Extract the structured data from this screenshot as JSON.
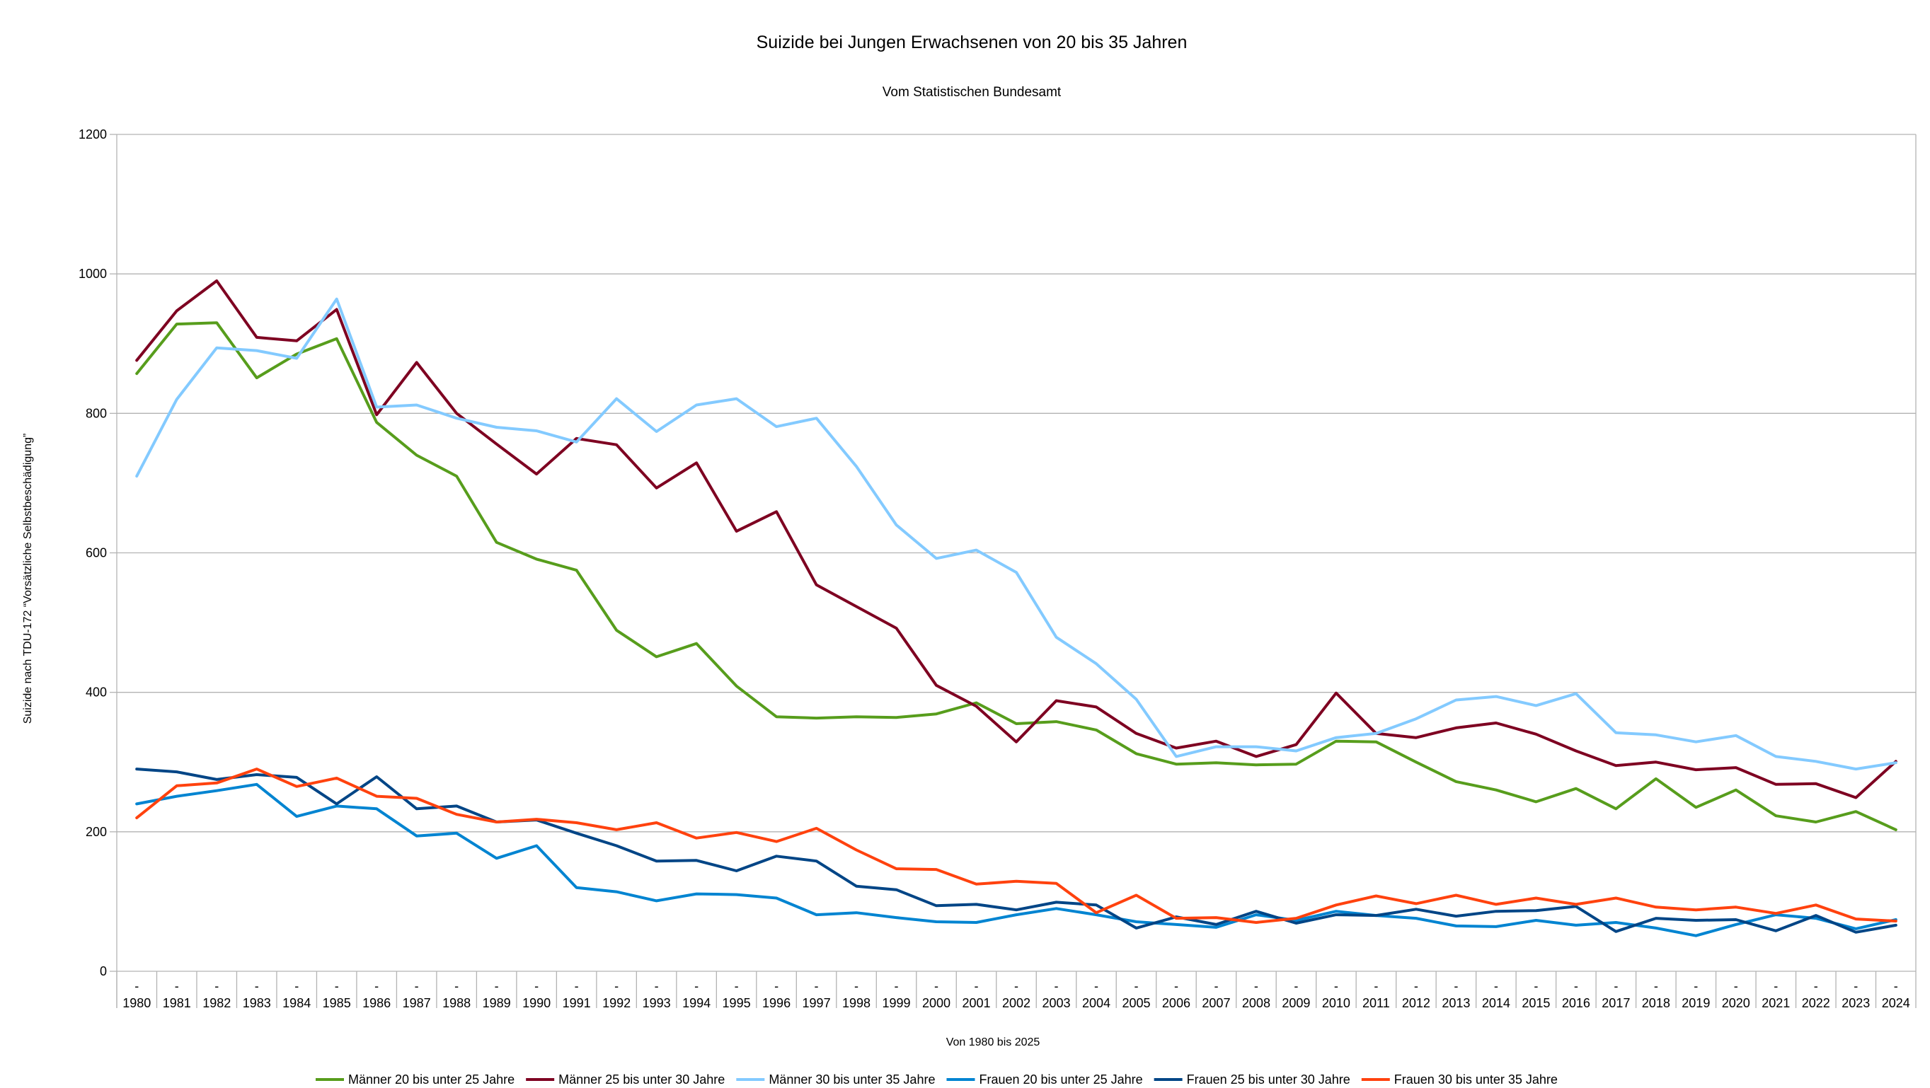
{
  "chart_data": {
    "type": "line",
    "title": "Suizide bei Jungen Erwachsenen von 20 bis 35 Jahren",
    "subtitle": "Vom Statistischen Bundesamt",
    "xlabel": "Von 1980 bis 2025",
    "ylabel": "Suizide nach TDU-172 “Vorsätzliche Selbstbeschädigung”",
    "ylim": [
      0,
      1200
    ],
    "yticks": [
      0,
      200,
      400,
      600,
      800,
      1000,
      1200
    ],
    "ytick_labels": [
      "0",
      "200",
      "400",
      "600",
      "800",
      "1000",
      "1200"
    ],
    "grid": true,
    "legend": "bottom",
    "category_prefix": "-",
    "categories": [
      "1980",
      "1981",
      "1982",
      "1983",
      "1984",
      "1985",
      "1986",
      "1987",
      "1988",
      "1989",
      "1990",
      "1991",
      "1992",
      "1993",
      "1994",
      "1995",
      "1996",
      "1997",
      "1998",
      "1999",
      "2000",
      "2001",
      "2002",
      "2003",
      "2004",
      "2005",
      "2006",
      "2007",
      "2008",
      "2009",
      "2010",
      "2011",
      "2012",
      "2013",
      "2014",
      "2015",
      "2016",
      "2017",
      "2018",
      "2019",
      "2020",
      "2021",
      "2022",
      "2023",
      "2024"
    ],
    "series": [
      {
        "name": "Männer 20 bis unter 25 Jahre",
        "color": "#579d1c",
        "values": [
          857,
          928,
          930,
          851,
          885,
          907,
          787,
          740,
          710,
          615,
          591,
          575,
          489,
          451,
          470,
          409,
          365,
          363,
          365,
          364,
          369,
          385,
          355,
          358,
          346,
          312,
          297,
          299,
          296,
          297,
          330,
          329,
          300,
          272,
          260,
          243,
          262,
          233,
          276,
          235,
          260,
          223,
          214,
          229,
          203
        ]
      },
      {
        "name": "Männer 25 bis unter 30 Jahre",
        "color": "#7e0021",
        "values": [
          876,
          947,
          990,
          909,
          904,
          949,
          798,
          873,
          800,
          756,
          713,
          764,
          755,
          693,
          729,
          631,
          659,
          554,
          523,
          492,
          410,
          380,
          329,
          388,
          379,
          341,
          320,
          330,
          308,
          325,
          399,
          341,
          335,
          349,
          356,
          340,
          316,
          295,
          300,
          289,
          292,
          268,
          269,
          249,
          301
        ]
      },
      {
        "name": "Männer 30 bis unter 35 Jahre",
        "color": "#83caff",
        "values": [
          710,
          820,
          894,
          890,
          879,
          964,
          809,
          812,
          793,
          780,
          775,
          759,
          821,
          774,
          812,
          821,
          781,
          793,
          724,
          640,
          592,
          604,
          572,
          479,
          441,
          390,
          308,
          322,
          322,
          316,
          335,
          341,
          362,
          389,
          394,
          381,
          398,
          342,
          339,
          329,
          338,
          308,
          301,
          290,
          299
        ]
      },
      {
        "name": "Frauen 20 bis unter 25 Jahre",
        "color": "#0084d1",
        "values": [
          240,
          251,
          259,
          268,
          222,
          237,
          233,
          194,
          198,
          162,
          180,
          120,
          114,
          101,
          111,
          110,
          105,
          81,
          84,
          77,
          71,
          70,
          81,
          90,
          81,
          71,
          67,
          63,
          81,
          73,
          86,
          80,
          76,
          65,
          64,
          73,
          66,
          70,
          62,
          51,
          67,
          81,
          76,
          61,
          74
        ]
      },
      {
        "name": "Frauen 25 bis unter 30 Jahre",
        "color": "#004586",
        "values": [
          290,
          286,
          275,
          282,
          278,
          240,
          279,
          233,
          237,
          214,
          217,
          198,
          180,
          158,
          159,
          144,
          165,
          158,
          122,
          117,
          94,
          96,
          88,
          99,
          95,
          62,
          78,
          67,
          86,
          69,
          81,
          80,
          89,
          79,
          86,
          87,
          93,
          57,
          76,
          73,
          74,
          58,
          80,
          56,
          66
        ]
      },
      {
        "name": "Frauen 30 bis unter 35 Jahre",
        "color": "#ff420e",
        "values": [
          220,
          266,
          270,
          290,
          265,
          277,
          251,
          248,
          225,
          214,
          218,
          213,
          203,
          213,
          191,
          199,
          186,
          205,
          174,
          147,
          146,
          125,
          129,
          126,
          84,
          109,
          76,
          77,
          70,
          76,
          95,
          108,
          97,
          109,
          96,
          105,
          96,
          105,
          92,
          88,
          92,
          83,
          95,
          75,
          72
        ]
      }
    ]
  }
}
